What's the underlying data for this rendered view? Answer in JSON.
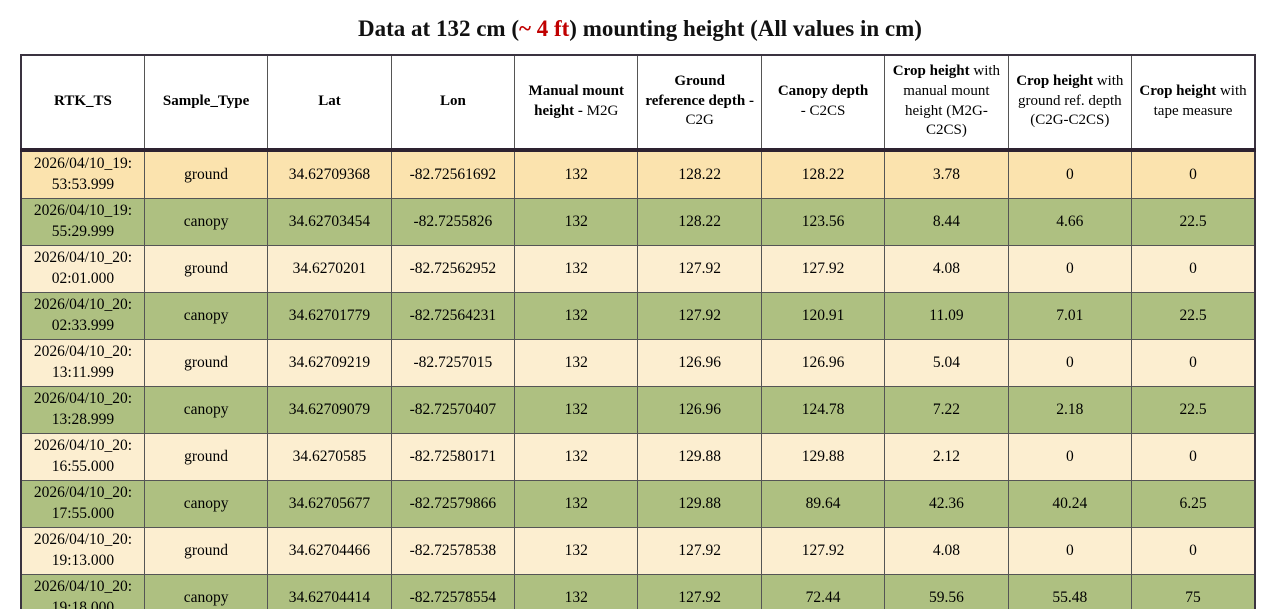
{
  "title": {
    "prefix": "Data at 132 cm (",
    "highlight": "~ 4 ft",
    "suffix": ") mounting height (All values in cm)"
  },
  "colors": {
    "highlight_text": "#c00000",
    "ground_first_row": "#fbe3ae",
    "ground_row": "#fceed0",
    "canopy_row": "#aec081",
    "grid_line": "#555555",
    "heavy_line": "#2d2230"
  },
  "header_display": [
    {
      "bold": "RTK_TS",
      "rest": ""
    },
    {
      "bold": "Sample_Type",
      "rest": ""
    },
    {
      "bold": "Lat",
      "rest": ""
    },
    {
      "bold": "Lon",
      "rest": ""
    },
    {
      "bold": "Manual mount height - ",
      "rest": "M2G"
    },
    {
      "bold": "Ground reference depth - ",
      "rest": "C2G"
    },
    {
      "bold": "Canopy depth",
      "rest": "\n- C2CS"
    },
    {
      "bold": "Crop height ",
      "rest": "with manual mount height (M2G-C2CS)"
    },
    {
      "bold": "Crop height ",
      "rest": "with ground ref. depth (C2G-C2CS)"
    },
    {
      "bold": "Crop height ",
      "rest": "with tape measure"
    }
  ],
  "chart_data": {
    "type": "table",
    "title": "Data at 132 cm (~ 4 ft) mounting height (All values in cm)",
    "columns": [
      "RTK_TS",
      "Sample_Type",
      "Lat",
      "Lon",
      "Manual mount height - M2G",
      "Ground reference depth - C2G",
      "Canopy depth - C2CS",
      "Crop height with manual mount height (M2G-C2CS)",
      "Crop height with ground ref. depth (C2G-C2CS)",
      "Crop height with tape measure"
    ],
    "rows": [
      [
        "2026/04/10_19:53:53.999",
        "ground",
        34.62709368,
        -82.72561692,
        132,
        128.22,
        128.22,
        3.78,
        0,
        0
      ],
      [
        "2026/04/10_19:55:29.999",
        "canopy",
        34.62703454,
        -82.7255826,
        132,
        128.22,
        123.56,
        8.44,
        4.66,
        22.5
      ],
      [
        "2026/04/10_20:02:01.000",
        "ground",
        34.6270201,
        -82.72562952,
        132,
        127.92,
        127.92,
        4.08,
        0,
        0
      ],
      [
        "2026/04/10_20:02:33.999",
        "canopy",
        34.62701779,
        -82.72564231,
        132,
        127.92,
        120.91,
        11.09,
        7.01,
        22.5
      ],
      [
        "2026/04/10_20:13:11.999",
        "ground",
        34.62709219,
        -82.7257015,
        132,
        126.96,
        126.96,
        5.04,
        0,
        0
      ],
      [
        "2026/04/10_20:13:28.999",
        "canopy",
        34.62709079,
        -82.72570407,
        132,
        126.96,
        124.78,
        7.22,
        2.18,
        22.5
      ],
      [
        "2026/04/10_20:16:55.000",
        "ground",
        34.6270585,
        -82.72580171,
        132,
        129.88,
        129.88,
        2.12,
        0,
        0
      ],
      [
        "2026/04/10_20:17:55.000",
        "canopy",
        34.62705677,
        -82.72579866,
        132,
        129.88,
        89.64,
        42.36,
        40.24,
        6.25
      ],
      [
        "2026/04/10_20:19:13.000",
        "ground",
        34.62704466,
        -82.72578538,
        132,
        127.92,
        127.92,
        4.08,
        0,
        0
      ],
      [
        "2026/04/10_20:19:18.000",
        "canopy",
        34.62704414,
        -82.72578554,
        132,
        127.92,
        72.44,
        59.56,
        55.48,
        75
      ]
    ]
  }
}
